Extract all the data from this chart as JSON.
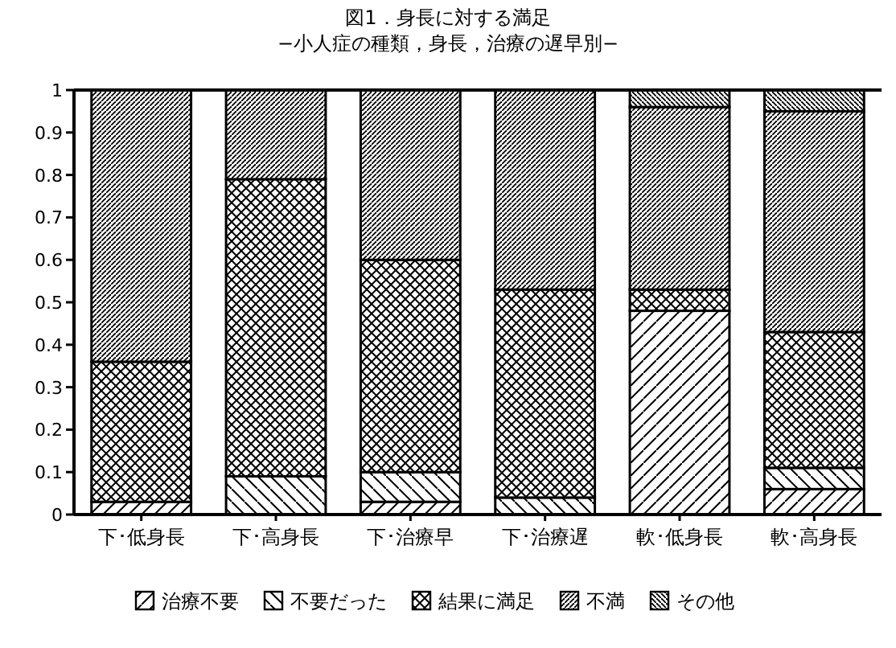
{
  "chart_data": {
    "type": "bar",
    "stacked": true,
    "title": "図1．身長に対する満足",
    "subtitle": "−小人症の種類，身長，治療の遅早別−",
    "categories": [
      "下･低身長",
      "下･高身長",
      "下･治療早",
      "下･治療遅",
      "軟･低身長",
      "軟･高身長"
    ],
    "series": [
      {
        "name": "治療不要",
        "color": "#000000",
        "values": [
          0.03,
          0,
          0.03,
          0,
          0.48,
          0.06
        ]
      },
      {
        "name": "不要だった",
        "color": "#000000",
        "values": [
          0,
          0.09,
          0.07,
          0.04,
          0,
          0.05
        ]
      },
      {
        "name": "結果に満足",
        "color": "#000000",
        "values": [
          0.33,
          0.7,
          0.5,
          0.49,
          0.05,
          0.32
        ]
      },
      {
        "name": "不満",
        "color": "#000000",
        "values": [
          0.64,
          0.21,
          0.4,
          0.47,
          0.43,
          0.52
        ]
      },
      {
        "name": "その他",
        "color": "#000000",
        "values": [
          0,
          0,
          0,
          0,
          0.04,
          0.05
        ]
      }
    ],
    "ylim": [
      0,
      1
    ],
    "yticks": [
      0,
      0.1,
      0.2,
      0.3,
      0.4,
      0.5,
      0.6,
      0.7,
      0.8,
      0.9,
      1
    ],
    "grid": false,
    "legend": "bottom"
  }
}
